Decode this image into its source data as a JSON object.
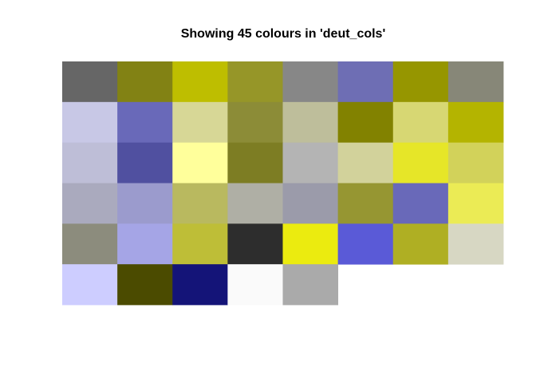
{
  "chart_data": {
    "type": "heatmap",
    "title": "Showing 45 colours in 'deut_cols'",
    "xlabel": "",
    "ylabel": "",
    "grid": false,
    "legend": "none",
    "ncol": 8,
    "nrow": 6,
    "colors": [
      "#666666",
      "#828214",
      "#BEBE00",
      "#969628",
      "#878787",
      "#6E6EB4",
      "#969600",
      "#878778",
      "#C8C8E6",
      "#6969B9",
      "#D7D796",
      "#8C8C37",
      "#BEBE9B",
      "#828200",
      "#D7D773",
      "#B4B400",
      "#BEBED7",
      "#5050A0",
      "#FFFF9B",
      "#7D7D23",
      "#B4B4B4",
      "#D2D29B",
      "#E6E628",
      "#D2D25A",
      "#AAAABE",
      "#9B9BCD",
      "#B9B95F",
      "#AFAFA5",
      "#9B9BAA",
      "#969632",
      "#6969B9",
      "#EBEB55",
      "#8C8C7D",
      "#A5A5E6",
      "#BEBE37",
      "#2D2D2D",
      "#EBEB0F",
      "#5A5AD7",
      "#AFAF23",
      "#D7D7C3",
      "#CDCDFF",
      "#4B4B00",
      "#141478",
      "#FAFAFA",
      "#AAAAAA"
    ]
  }
}
